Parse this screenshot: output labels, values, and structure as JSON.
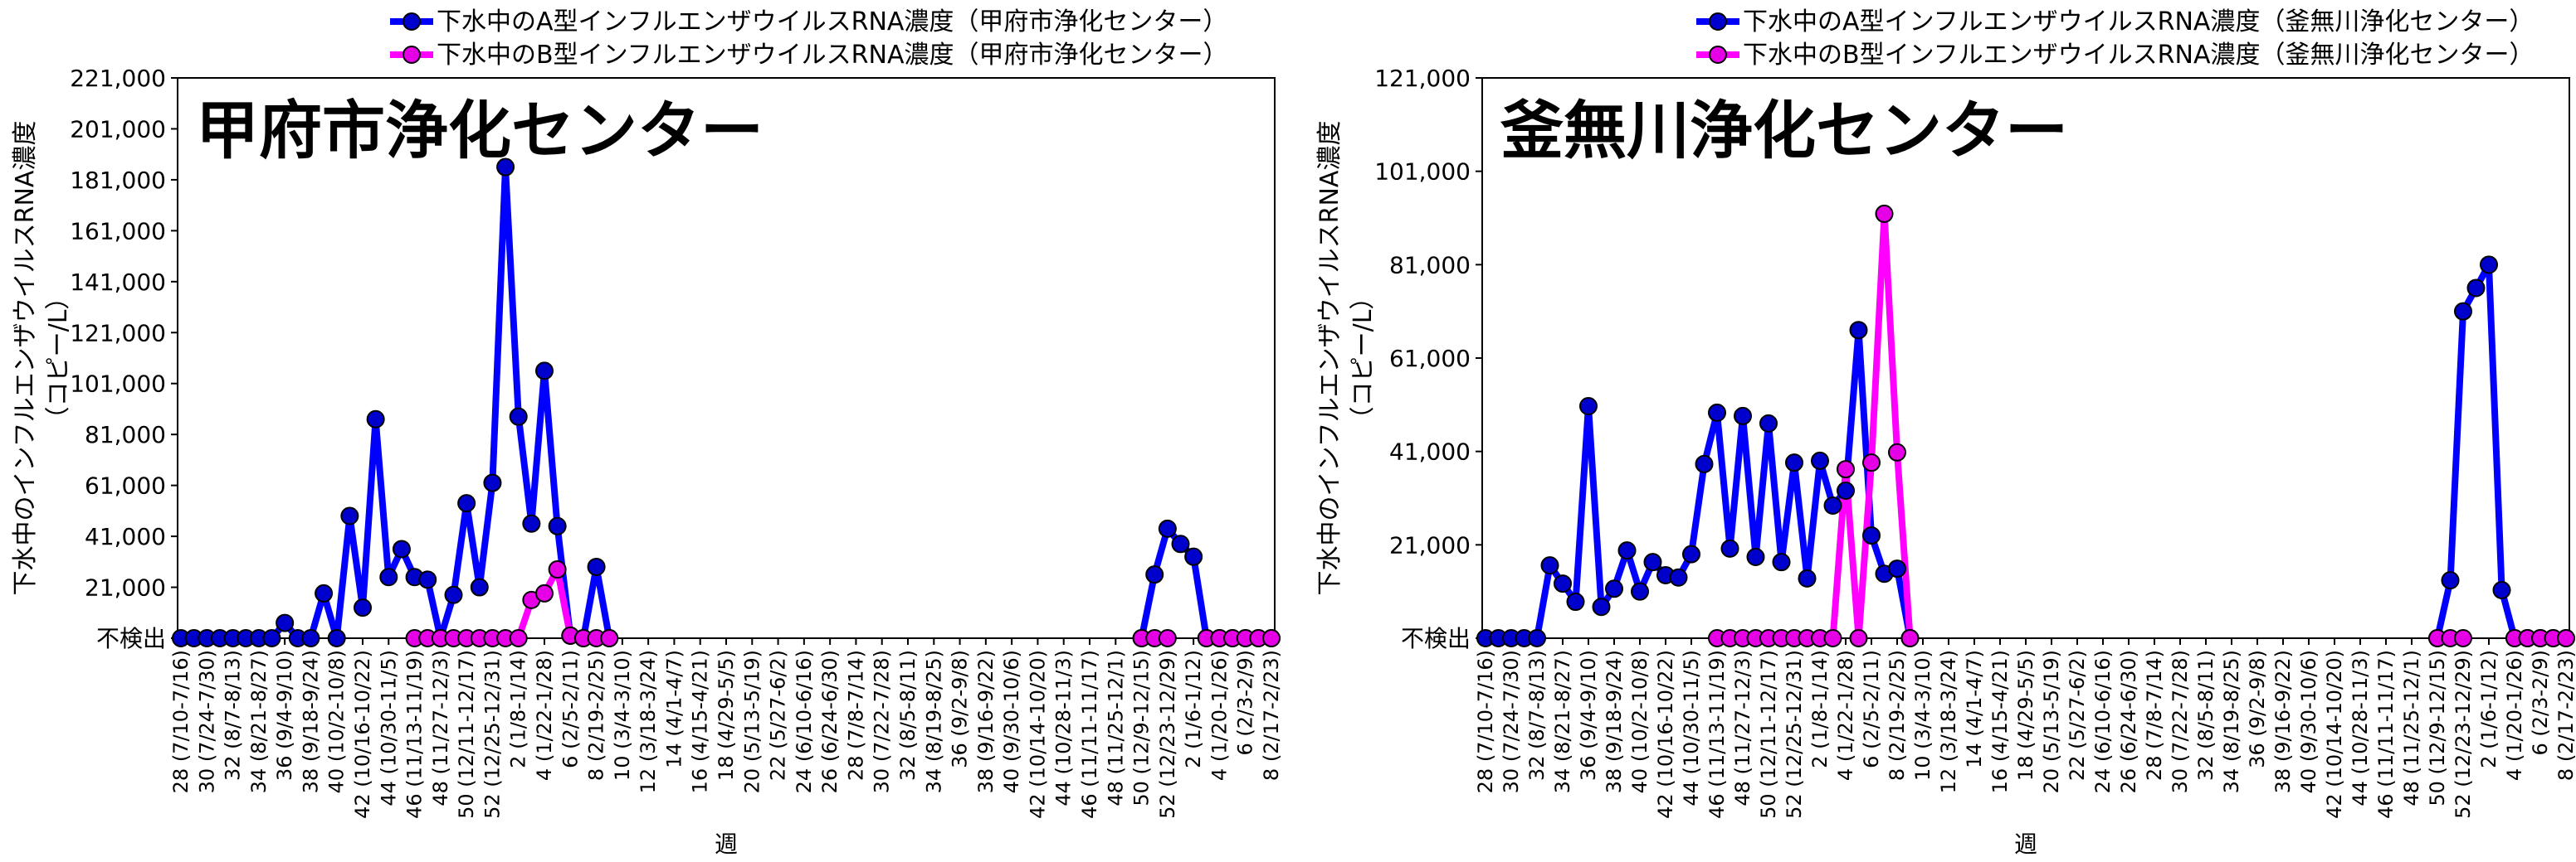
{
  "chart_data": [
    {
      "type": "line",
      "title": "甲府市浄化センター",
      "x_label": "週",
      "y_label": [
        "下水中のインフルエンザウイルスRNA濃度",
        "（コピー/L）"
      ],
      "categories": [
        "28 (7/10-7/16)",
        null,
        "30 (7/24-7/30)",
        null,
        "32 (8/7-8/13)",
        null,
        "34 (8/21-8/27)",
        null,
        "36 (9/4-9/10)",
        null,
        "38 (9/18-9/24)",
        null,
        "40 (10/2-10/8)",
        null,
        "42 (10/16-10/22)",
        null,
        "44 (10/30-11/5)",
        null,
        "46 (11/13-11/19)",
        null,
        "48 (11/27-12/3)",
        null,
        "50 (12/11-12/17)",
        null,
        "52 (12/25-12/31)",
        null,
        "2 (1/8-1/14)",
        null,
        "4 (1/22-1/28)",
        null,
        "6 (2/5-2/11)",
        null,
        "8 (2/19-2/25)",
        null,
        "10 (3/4-3/10)",
        null,
        "12 (3/18-3/24)",
        null,
        "14 (4/1-4/7)",
        null,
        "16 (4/15-4/21)",
        null,
        "18 (4/29-5/5)",
        null,
        "20 (5/13-5/19)",
        null,
        "22 (5/27-6/2)",
        null,
        "24 (6/10-6/16)",
        null,
        "26 (6/24-6/30)",
        null,
        "28 (7/8-7/14)",
        null,
        "30 (7/22-7/28)",
        null,
        "32 (8/5-8/11)",
        null,
        "34 (8/19-8/25)",
        null,
        "36 (9/2-9/8)",
        null,
        "38 (9/16-9/22)",
        null,
        "40 (9/30-10/6)",
        null,
        "42 (10/14-10/20)",
        null,
        "44 (10/28-11/3)",
        null,
        "46 (11/11-11/17)",
        null,
        "48 (11/25-12/1)",
        null,
        "50 (12/9-12/15)",
        null,
        "52 (12/23-12/29)",
        null,
        "2 (1/6-1/12)",
        null,
        "4 (1/20-1/26)",
        null,
        "6 (2/3-2/9)",
        null,
        "8 (2/17-2/23)"
      ],
      "series": [
        {
          "name": "下水中のA型インフルエンザウイルスRNA濃度（甲府市浄化センター）",
          "color": "#0000ff",
          "values": [
            1000,
            1000,
            1000,
            1000,
            1000,
            1000,
            1000,
            1000,
            7000,
            1000,
            1000,
            18600,
            1000,
            49000,
            13000,
            87000,
            25000,
            36000,
            25000,
            24000,
            1000,
            18000,
            54000,
            21000,
            62000,
            186000,
            88000,
            46000,
            106000,
            45000,
            2000,
            1000,
            29000,
            1000,
            null,
            null,
            null,
            null,
            null,
            null,
            null,
            null,
            null,
            null,
            null,
            null,
            null,
            null,
            null,
            null,
            null,
            null,
            null,
            null,
            null,
            null,
            null,
            null,
            null,
            null,
            null,
            null,
            null,
            null,
            null,
            null,
            null,
            null,
            null,
            null,
            null,
            null,
            null,
            null,
            1000,
            26000,
            44000,
            38000,
            33000,
            1000,
            1000,
            1000,
            1000,
            1000,
            1000
          ]
        },
        {
          "name": "下水中のB型インフルエンザウイルスRNA濃度（甲府市浄化センター）",
          "color": "#ff00ff",
          "values": [
            null,
            null,
            null,
            null,
            null,
            null,
            null,
            null,
            null,
            null,
            null,
            null,
            null,
            null,
            null,
            null,
            null,
            null,
            1000,
            1000,
            1000,
            1000,
            1000,
            1000,
            1000,
            1000,
            1000,
            16000,
            18600,
            28000,
            2000,
            1000,
            1000,
            1000,
            null,
            null,
            null,
            null,
            null,
            null,
            null,
            null,
            null,
            null,
            null,
            null,
            null,
            null,
            null,
            null,
            null,
            null,
            null,
            null,
            null,
            null,
            null,
            null,
            null,
            null,
            null,
            null,
            null,
            null,
            null,
            null,
            null,
            null,
            null,
            null,
            null,
            null,
            null,
            null,
            1000,
            1000,
            1000,
            null,
            null,
            1000,
            1000,
            1000,
            1000,
            1000,
            1000
          ]
        }
      ],
      "ylim": [
        1000,
        221000
      ],
      "yticks": [
        {
          "value": 1000,
          "label": "不検出"
        },
        {
          "value": 21000,
          "label": "21,000"
        },
        {
          "value": 41000,
          "label": "41,000"
        },
        {
          "value": 61000,
          "label": "61,000"
        },
        {
          "value": 81000,
          "label": "81,000"
        },
        {
          "value": 101000,
          "label": "101,000"
        },
        {
          "value": 121000,
          "label": "121,000"
        },
        {
          "value": 141000,
          "label": "141,000"
        },
        {
          "value": 161000,
          "label": "161,000"
        },
        {
          "value": 181000,
          "label": "181,000"
        },
        {
          "value": 201000,
          "label": "201,000"
        },
        {
          "value": 221000,
          "label": "221,000"
        }
      ],
      "title_color": "#0000cc"
    },
    {
      "type": "line",
      "title": "釜無川浄化センター",
      "x_label": "週",
      "y_label": [
        "下水中のインフルエンザウイルスRNA濃度",
        "（コピー/L）"
      ],
      "categories": [
        "28 (7/10-7/16)",
        null,
        "30 (7/24-7/30)",
        null,
        "32 (8/7-8/13)",
        null,
        "34 (8/21-8/27)",
        null,
        "36 (9/4-9/10)",
        null,
        "38 (9/18-9/24)",
        null,
        "40 (10/2-10/8)",
        null,
        "42 (10/16-10/22)",
        null,
        "44 (10/30-11/5)",
        null,
        "46 (11/13-11/19)",
        null,
        "48 (11/27-12/3)",
        null,
        "50 (12/11-12/17)",
        null,
        "52 (12/25-12/31)",
        null,
        "2 (1/8-1/14)",
        null,
        "4 (1/22-1/28)",
        null,
        "6 (2/5-2/11)",
        null,
        "8 (2/19-2/25)",
        null,
        "10 (3/4-3/10)",
        null,
        "12 (3/18-3/24)",
        null,
        "14 (4/1-4/7)",
        null,
        "16 (4/15-4/21)",
        null,
        "18 (4/29-5/5)",
        null,
        "20 (5/13-5/19)",
        null,
        "22 (5/27-6/2)",
        null,
        "24 (6/10-6/16)",
        null,
        "26 (6/24-6/30)",
        null,
        "28 (7/8-7/14)",
        null,
        "30 (7/22-7/28)",
        null,
        "32 (8/5-8/11)",
        null,
        "34 (8/19-8/25)",
        null,
        "36 (9/2-9/8)",
        null,
        "38 (9/16-9/22)",
        null,
        "40 (9/30-10/6)",
        null,
        "42 (10/14-10/20)",
        null,
        "44 (10/28-11/3)",
        null,
        "46 (11/11-11/17)",
        null,
        "48 (11/25-12/1)",
        null,
        "50 (12/9-12/15)",
        null,
        "52 (12/23-12/29)",
        null,
        "2 (1/6-1/12)",
        null,
        "4 (1/20-1/26)",
        null,
        "6 (2/3-2/9)",
        null,
        "8 (2/17-2/23)"
      ],
      "series": [
        {
          "name": "下水中のA型インフルエンザウイルスRNA濃度（釜無川浄化センター）",
          "color": "#0000ff",
          "values": [
            1000,
            1000,
            1000,
            1000,
            1000,
            16600,
            12700,
            8800,
            50700,
            7700,
            11600,
            19800,
            11000,
            17300,
            14500,
            14000,
            19000,
            38300,
            49300,
            20200,
            48600,
            18400,
            47000,
            17300,
            38600,
            13800,
            39000,
            29400,
            32600,
            67000,
            23000,
            14800,
            15900,
            1000,
            null,
            null,
            null,
            null,
            null,
            null,
            null,
            null,
            null,
            null,
            null,
            null,
            null,
            null,
            null,
            null,
            null,
            null,
            null,
            null,
            null,
            null,
            null,
            null,
            null,
            null,
            null,
            null,
            null,
            null,
            null,
            null,
            null,
            null,
            null,
            null,
            null,
            null,
            null,
            null,
            1000,
            13400,
            71000,
            76000,
            81000,
            11300,
            1000,
            1000,
            1000,
            1000,
            1000
          ]
        },
        {
          "name": "下水中のB型インフルエンザウイルスRNA濃度（釜無川浄化センター）",
          "color": "#ff00ff",
          "values": [
            null,
            null,
            null,
            null,
            null,
            null,
            null,
            null,
            null,
            null,
            null,
            null,
            null,
            null,
            null,
            null,
            null,
            null,
            1000,
            1000,
            1000,
            1000,
            1000,
            1000,
            1000,
            1000,
            1000,
            1000,
            37200,
            1000,
            38600,
            91900,
            40800,
            1000,
            null,
            null,
            null,
            null,
            null,
            null,
            null,
            null,
            null,
            null,
            null,
            null,
            null,
            null,
            null,
            null,
            null,
            null,
            null,
            null,
            null,
            null,
            null,
            null,
            null,
            null,
            null,
            null,
            null,
            null,
            null,
            null,
            null,
            null,
            null,
            null,
            null,
            null,
            null,
            null,
            1000,
            1000,
            1000,
            null,
            null,
            null,
            1000,
            1000,
            1000,
            1000,
            1000
          ]
        }
      ],
      "ylim": [
        1000,
        121000
      ],
      "yticks": [
        {
          "value": 1000,
          "label": "不検出"
        },
        {
          "value": 21000,
          "label": "21,000"
        },
        {
          "value": 41000,
          "label": "41,000"
        },
        {
          "value": 61000,
          "label": "61,000"
        },
        {
          "value": 81000,
          "label": "81,000"
        },
        {
          "value": 101000,
          "label": "101,000"
        },
        {
          "value": 121000,
          "label": "121,000"
        }
      ],
      "title_color": "#0000cc"
    }
  ]
}
